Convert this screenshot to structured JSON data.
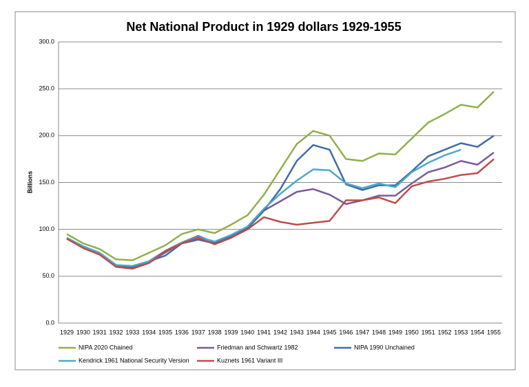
{
  "chart_data": {
    "type": "line",
    "title": "Net National Product in 1929 dollars 1929-1955",
    "y_label": "Billions",
    "x": [
      1929,
      1930,
      1931,
      1932,
      1933,
      1934,
      1935,
      1936,
      1937,
      1938,
      1939,
      1940,
      1941,
      1942,
      1943,
      1944,
      1945,
      1946,
      1947,
      1948,
      1949,
      1950,
      1951,
      1952,
      1953,
      1954,
      1955
    ],
    "xlim": [
      1929,
      1955
    ],
    "ylim": [
      0,
      300
    ],
    "yticks": [
      {
        "value": 0,
        "label": "0.0"
      },
      {
        "value": 50,
        "label": "50.0"
      },
      {
        "value": 100,
        "label": "100.0"
      },
      {
        "value": 150,
        "label": "150.0"
      },
      {
        "value": 200,
        "label": "200.0"
      },
      {
        "value": 250,
        "label": "250.0"
      },
      {
        "value": 300,
        "label": "300.0"
      }
    ],
    "grid": true,
    "legend": "bottom",
    "series": [
      {
        "name": "NIPA 2020 Chained",
        "color": "#8fb04a",
        "values": [
          95,
          85,
          79,
          68,
          67,
          75,
          83,
          95,
          100,
          96,
          105,
          115,
          137,
          164,
          191,
          205,
          200,
          175,
          173,
          181,
          180,
          197,
          214,
          223,
          233,
          230,
          247
        ]
      },
      {
        "name": "Friedman and Schwartz 1982",
        "color": "#7a5a98",
        "values": [
          91,
          81,
          74,
          61,
          59,
          66,
          77,
          86,
          93,
          86,
          93,
          101,
          120,
          130,
          140,
          143,
          137,
          127,
          131,
          136,
          136,
          149,
          161,
          166,
          173,
          169,
          182
        ]
      },
      {
        "name": "NIPA 1990 Unchained",
        "color": "#3e6ca5",
        "values": [
          90,
          81,
          74,
          62,
          60,
          66,
          72,
          85,
          89,
          85,
          92,
          101,
          120,
          143,
          173,
          190,
          185,
          148,
          142,
          147,
          147,
          162,
          178,
          185,
          192,
          188,
          200
        ]
      },
      {
        "name": "Kendrick 1961 National Security Version",
        "color": "#4aaac6",
        "values": [
          91,
          82,
          75,
          62,
          61,
          66,
          75,
          86,
          92,
          87,
          94,
          103,
          122,
          138,
          152,
          164,
          163,
          149,
          144,
          149,
          145,
          161,
          171,
          179,
          185,
          null,
          null
        ]
      },
      {
        "name": "Kuznets 1961 Variant III",
        "color": "#be4b48",
        "values": [
          90,
          80,
          73,
          60,
          58,
          64,
          76,
          85,
          91,
          84,
          91,
          100,
          113,
          108,
          105,
          107,
          109,
          131,
          131,
          134,
          128,
          146,
          151,
          154,
          158,
          160,
          175
        ]
      }
    ]
  }
}
